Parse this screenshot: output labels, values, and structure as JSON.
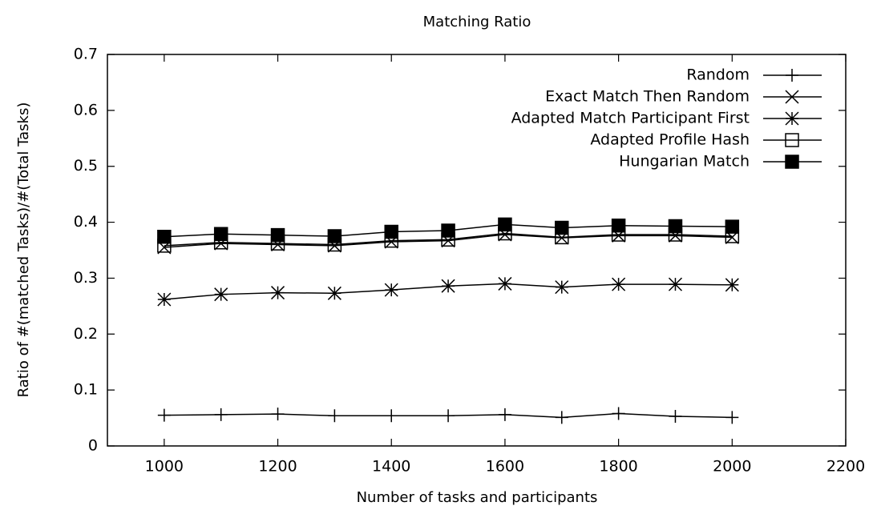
{
  "chart_data": {
    "type": "line",
    "title": "Matching Ratio",
    "x_label": "Number of tasks and participants",
    "y_label": "Ratio of #(matched Tasks)/#(Total Tasks)",
    "x": [
      1000,
      1100,
      1200,
      1300,
      1400,
      1500,
      1600,
      1700,
      1800,
      1900,
      2000
    ],
    "xlim": [
      900,
      2200
    ],
    "xticks": [
      1000,
      1200,
      1400,
      1600,
      1800,
      2000,
      2200
    ],
    "ylim": [
      0,
      0.7
    ],
    "yticks": [
      0,
      0.1,
      0.2,
      0.3,
      0.4,
      0.5,
      0.6,
      0.7
    ],
    "legend": "top-right",
    "series": [
      {
        "name": "Random",
        "color": "#000000",
        "marker": "plus",
        "values": [
          0.055,
          0.056,
          0.057,
          0.054,
          0.054,
          0.054,
          0.056,
          0.051,
          0.058,
          0.053,
          0.051
        ]
      },
      {
        "name": "Exact Match Then Random",
        "color": "#000000",
        "marker": "cross",
        "values": [
          0.355,
          0.362,
          0.36,
          0.358,
          0.365,
          0.367,
          0.378,
          0.372,
          0.376,
          0.376,
          0.373
        ]
      },
      {
        "name": "Adapted Match Participant First",
        "color": "#000000",
        "marker": "star",
        "values": [
          0.262,
          0.271,
          0.274,
          0.273,
          0.279,
          0.286,
          0.29,
          0.284,
          0.289,
          0.289,
          0.288
        ]
      },
      {
        "name": "Adapted Profile Hash",
        "color": "#000000",
        "marker": "square",
        "values": [
          0.358,
          0.364,
          0.362,
          0.36,
          0.367,
          0.369,
          0.38,
          0.373,
          0.378,
          0.378,
          0.375
        ]
      },
      {
        "name": "Hungarian Match",
        "color": "#000000",
        "marker": "filled-square",
        "values": [
          0.374,
          0.379,
          0.377,
          0.375,
          0.383,
          0.385,
          0.396,
          0.39,
          0.394,
          0.393,
          0.392
        ]
      }
    ]
  }
}
